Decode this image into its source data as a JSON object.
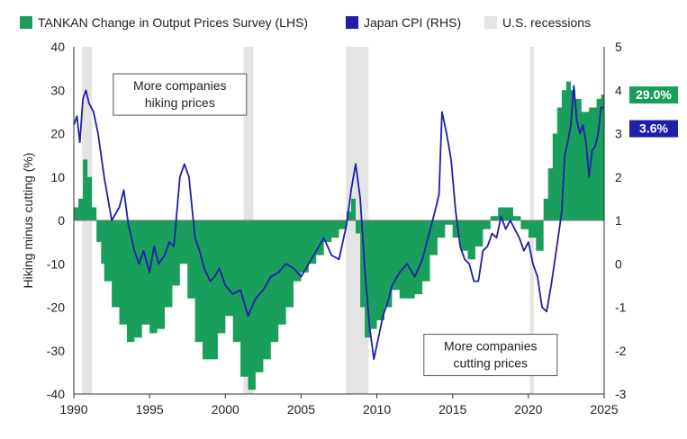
{
  "chart_data": {
    "type": "area",
    "title": "",
    "ylabel_left": "Hiking minus cutting (%)",
    "ylabel_right": "",
    "xlim": [
      1990,
      2025
    ],
    "ylim_left": [
      -40,
      40
    ],
    "ylim_right": [
      -3,
      5
    ],
    "x_ticks": [
      "1990",
      "1995",
      "2000",
      "2005",
      "2010",
      "2015",
      "2020",
      "2025"
    ],
    "y_ticks_left": [
      "40",
      "30",
      "20",
      "10",
      "0",
      "-10",
      "-20",
      "-30",
      "-40"
    ],
    "y_ticks_right": [
      "5",
      "4",
      "3",
      "2",
      "1",
      "0",
      "-1",
      "-2",
      "-3"
    ],
    "legend": [
      {
        "label": "TANKAN Change in Output Prices Survey (LHS)",
        "color": "#1a9e5c",
        "kind": "area"
      },
      {
        "label": "Japan CPI (RHS)",
        "color": "#1f1fa8",
        "kind": "line"
      },
      {
        "label": "U.S. recessions",
        "color": "#e4e4e4",
        "kind": "band"
      }
    ],
    "recessions": [
      [
        1990.55,
        1991.2
      ],
      [
        2001.2,
        2001.85
      ],
      [
        2007.95,
        2009.45
      ],
      [
        2020.1,
        2020.35
      ]
    ],
    "series": [
      {
        "name": "TANKAN Change in Output Prices Survey (LHS)",
        "axis": "left",
        "color": "#1a9e5c",
        "x": [
          1990,
          1990.3,
          1990.6,
          1990.9,
          1991.2,
          1991.5,
          1991.8,
          1992,
          1992.5,
          1993,
          1993.5,
          1994,
          1994.5,
          1995,
          1995.5,
          1996,
          1996.5,
          1997,
          1997.5,
          1998,
          1998.5,
          1999,
          1999.5,
          2000,
          2000.5,
          2001,
          2001.5,
          2002,
          2002.5,
          2003,
          2003.5,
          2004,
          2004.5,
          2005,
          2005.5,
          2006,
          2006.5,
          2007,
          2007.5,
          2008,
          2008.3,
          2008.6,
          2008.9,
          2009.2,
          2009.6,
          2010,
          2010.5,
          2011,
          2011.5,
          2012,
          2012.5,
          2013,
          2013.5,
          2014,
          2014.5,
          2015,
          2015.5,
          2016,
          2016.5,
          2017,
          2017.5,
          2018,
          2018.5,
          2019,
          2019.5,
          2020,
          2020.5,
          2021,
          2021.3,
          2021.6,
          2021.9,
          2022.2,
          2022.5,
          2022.8,
          2023.1,
          2023.5,
          2024,
          2024.5,
          2024.8
        ],
        "values": [
          3,
          5,
          14,
          10,
          3,
          -5,
          -10,
          -14,
          -20,
          -24,
          -28,
          -27,
          -24,
          -26,
          -25,
          -20,
          -15,
          -10,
          -18,
          -28,
          -32,
          -32,
          -26,
          -22,
          -28,
          -36,
          -39,
          -35,
          -32,
          -28,
          -24,
          -20,
          -14,
          -12,
          -10,
          -8,
          -5,
          -4,
          -2,
          2,
          5,
          -3,
          -20,
          -27,
          -25,
          -23,
          -20,
          -16,
          -18,
          -18,
          -17,
          -14,
          -8,
          -4,
          -1,
          -4,
          -7,
          -9,
          -6,
          -2,
          1,
          3,
          3,
          1,
          -2,
          -4,
          -7,
          5,
          12,
          20,
          26,
          30,
          32,
          30,
          28,
          25,
          26,
          28,
          29
        ]
      },
      {
        "name": "Japan CPI (RHS)",
        "axis": "right",
        "color": "#1f1fa8",
        "x": [
          1990,
          1990.2,
          1990.4,
          1990.6,
          1990.8,
          1991,
          1991.3,
          1991.6,
          1992,
          1992.5,
          1993,
          1993.3,
          1993.6,
          1994,
          1994.3,
          1994.6,
          1995,
          1995.3,
          1995.6,
          1996,
          1996.3,
          1996.6,
          1997,
          1997.3,
          1997.6,
          1998,
          1998.3,
          1998.6,
          1999,
          1999.3,
          1999.6,
          2000,
          2000.5,
          2001,
          2001.5,
          2002,
          2002.5,
          2003,
          2003.5,
          2004,
          2004.5,
          2005,
          2005.5,
          2006,
          2006.5,
          2007,
          2007.5,
          2008,
          2008.3,
          2008.6,
          2008.9,
          2009.2,
          2009.5,
          2009.8,
          2010.1,
          2010.4,
          2010.7,
          2011,
          2011.5,
          2012,
          2012.5,
          2013,
          2013.3,
          2013.6,
          2013.9,
          2014.1,
          2014.3,
          2014.6,
          2014.9,
          2015.2,
          2015.5,
          2015.8,
          2016.1,
          2016.4,
          2016.7,
          2017,
          2017.3,
          2017.6,
          2017.9,
          2018.2,
          2018.5,
          2018.8,
          2019.1,
          2019.4,
          2019.7,
          2020,
          2020.3,
          2020.6,
          2020.9,
          2021.2,
          2021.5,
          2021.8,
          2022,
          2022.2,
          2022.4,
          2022.6,
          2022.8,
          2023,
          2023.2,
          2023.4,
          2023.6,
          2023.8,
          2024,
          2024.2,
          2024.4,
          2024.6,
          2024.8,
          2025
        ],
        "values": [
          3.2,
          3.4,
          2.8,
          3.8,
          4.0,
          3.7,
          3.5,
          3.0,
          2.0,
          1.0,
          1.3,
          1.7,
          0.9,
          0.3,
          0.0,
          0.3,
          -0.2,
          0.4,
          0.0,
          0.2,
          0.5,
          0.4,
          2.0,
          2.3,
          2.0,
          0.6,
          0.3,
          -0.1,
          -0.4,
          -0.3,
          -0.1,
          -0.5,
          -0.7,
          -0.6,
          -1.2,
          -0.8,
          -0.6,
          -0.3,
          -0.2,
          0.0,
          -0.1,
          -0.3,
          0.0,
          0.3,
          0.6,
          0.2,
          0.1,
          0.9,
          1.7,
          2.3,
          1.5,
          -0.1,
          -1.4,
          -2.2,
          -1.7,
          -1.2,
          -0.9,
          -0.5,
          -0.2,
          0.0,
          -0.3,
          0.1,
          0.5,
          0.9,
          1.3,
          1.6,
          3.5,
          3.0,
          2.4,
          1.2,
          0.4,
          0.1,
          0.0,
          -0.4,
          -0.4,
          0.3,
          0.4,
          0.7,
          0.6,
          1.1,
          0.8,
          1.0,
          0.8,
          0.6,
          0.3,
          0.5,
          0.0,
          -0.3,
          -1.0,
          -1.1,
          -0.5,
          0.2,
          0.7,
          1.2,
          2.5,
          2.8,
          3.2,
          4.1,
          3.3,
          3.0,
          3.2,
          2.8,
          2.0,
          2.6,
          2.7,
          3.0,
          3.6,
          3.6
        ]
      }
    ],
    "annotations": [
      {
        "lines": [
          "More companies",
          "hiking prices"
        ],
        "x": 1997,
        "y": 29
      },
      {
        "lines": [
          "More companies",
          "cutting prices"
        ],
        "x": 2017.5,
        "y": -31
      }
    ],
    "end_labels": [
      {
        "text": "29.0%",
        "color": "#1a9e5c"
      },
      {
        "text": "3.6%",
        "color": "#1f1fa8"
      }
    ],
    "grid": false,
    "legend_position": "top"
  }
}
